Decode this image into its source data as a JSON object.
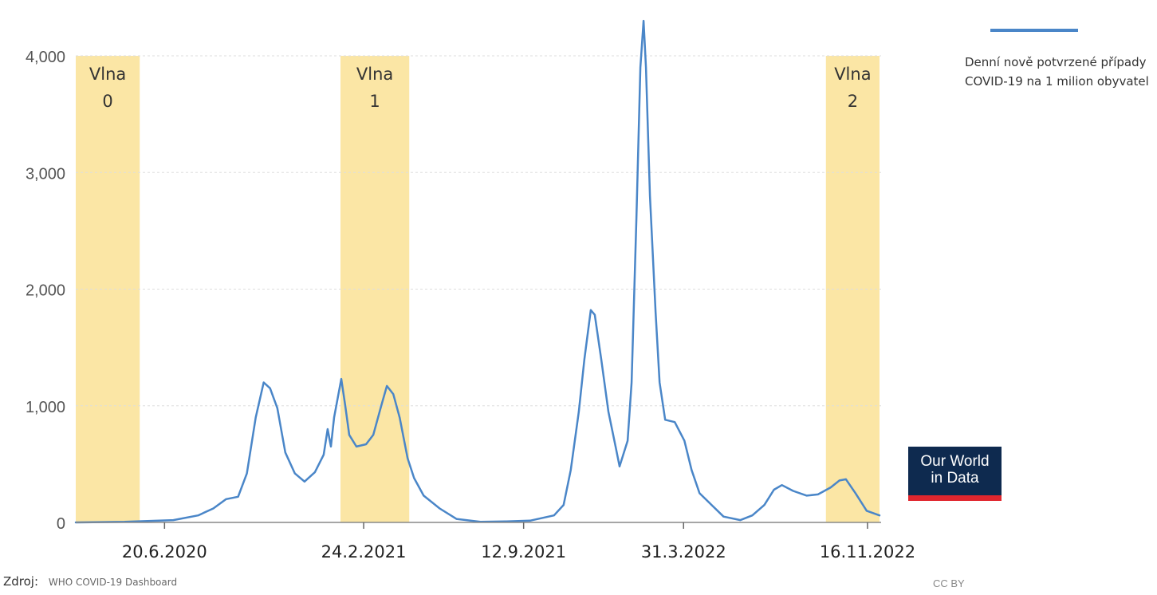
{
  "colors": {
    "line": "#4a86c8",
    "band": "#fbe6a5",
    "grid": "#dddddd",
    "axis_text": "#555555",
    "logo_bg": "#0e2a4f",
    "logo_accent": "#e0262e"
  },
  "source": {
    "label": "Zdroj:",
    "value": "WHO COVID-19 Dashboard"
  },
  "license": "CC BY",
  "logo": {
    "line1": "Our World",
    "line2": "in Data"
  },
  "chart_data": {
    "type": "line",
    "xlabel": "",
    "ylabel": "",
    "xlim": [
      "2020-03-01",
      "2022-12-03"
    ],
    "ylim": [
      0,
      4000
    ],
    "yticks": [
      0,
      1000,
      2000,
      3000,
      4000
    ],
    "ytick_labels": [
      "0",
      "1,000",
      "2,000",
      "3,000",
      "4,000"
    ],
    "xtick_labels": [
      {
        "date": "2020-06-20",
        "label": "20.6.2020"
      },
      {
        "date": "2021-02-24",
        "label": "24.2.2021"
      },
      {
        "date": "2021-09-12",
        "label": "12.9.2021"
      },
      {
        "date": "2022-03-31",
        "label": "31.3.2022"
      },
      {
        "date": "2022-11-16",
        "label": "16.11.2022"
      }
    ],
    "grid": true,
    "legend_position": "top-right",
    "bands": [
      {
        "start": "2020-03-01",
        "end": "2020-05-20",
        "label_line1": "Vlna",
        "label_line2": "0"
      },
      {
        "start": "2021-01-26",
        "end": "2021-04-22",
        "label_line1": "Vlna",
        "label_line2": "1"
      },
      {
        "start": "2022-09-25",
        "end": "2022-12-01",
        "label_line1": "Vlna",
        "label_line2": "2"
      }
    ],
    "series": [
      {
        "name": "Denní nově potvrzené případy COVID-19 na 1 milion obyvatel",
        "points": [
          [
            "2020-03-01",
            0
          ],
          [
            "2020-05-01",
            5
          ],
          [
            "2020-07-01",
            20
          ],
          [
            "2020-08-01",
            60
          ],
          [
            "2020-08-20",
            120
          ],
          [
            "2020-09-05",
            200
          ],
          [
            "2020-09-20",
            220
          ],
          [
            "2020-10-01",
            420
          ],
          [
            "2020-10-12",
            900
          ],
          [
            "2020-10-22",
            1200
          ],
          [
            "2020-10-30",
            1150
          ],
          [
            "2020-11-08",
            980
          ],
          [
            "2020-11-18",
            600
          ],
          [
            "2020-11-30",
            420
          ],
          [
            "2020-12-12",
            350
          ],
          [
            "2020-12-25",
            430
          ],
          [
            "2021-01-05",
            580
          ],
          [
            "2021-01-10",
            800
          ],
          [
            "2021-01-14",
            650
          ],
          [
            "2021-01-18",
            900
          ],
          [
            "2021-01-27",
            1230
          ],
          [
            "2021-02-01",
            1000
          ],
          [
            "2021-02-06",
            750
          ],
          [
            "2021-02-15",
            650
          ],
          [
            "2021-02-27",
            670
          ],
          [
            "2021-03-08",
            750
          ],
          [
            "2021-03-18",
            1000
          ],
          [
            "2021-03-25",
            1170
          ],
          [
            "2021-04-02",
            1100
          ],
          [
            "2021-04-10",
            900
          ],
          [
            "2021-04-20",
            550
          ],
          [
            "2021-04-28",
            380
          ],
          [
            "2021-05-10",
            230
          ],
          [
            "2021-05-30",
            120
          ],
          [
            "2021-06-20",
            30
          ],
          [
            "2021-07-20",
            5
          ],
          [
            "2021-08-20",
            8
          ],
          [
            "2021-09-20",
            15
          ],
          [
            "2021-10-20",
            60
          ],
          [
            "2021-11-01",
            150
          ],
          [
            "2021-11-10",
            450
          ],
          [
            "2021-11-20",
            950
          ],
          [
            "2021-11-27",
            1400
          ],
          [
            "2021-12-05",
            1820
          ],
          [
            "2021-12-10",
            1780
          ],
          [
            "2021-12-18",
            1400
          ],
          [
            "2021-12-27",
            950
          ],
          [
            "2022-01-05",
            650
          ],
          [
            "2022-01-10",
            480
          ],
          [
            "2022-01-20",
            700
          ],
          [
            "2022-01-25",
            1200
          ],
          [
            "2022-01-31",
            2600
          ],
          [
            "2022-02-05",
            3900
          ],
          [
            "2022-02-09",
            4300
          ],
          [
            "2022-02-12",
            3900
          ],
          [
            "2022-02-17",
            2800
          ],
          [
            "2022-02-24",
            1800
          ],
          [
            "2022-03-01",
            1200
          ],
          [
            "2022-03-08",
            880
          ],
          [
            "2022-03-20",
            860
          ],
          [
            "2022-04-01",
            700
          ],
          [
            "2022-04-10",
            450
          ],
          [
            "2022-04-20",
            250
          ],
          [
            "2022-05-05",
            150
          ],
          [
            "2022-05-20",
            50
          ],
          [
            "2022-06-10",
            20
          ],
          [
            "2022-06-25",
            60
          ],
          [
            "2022-07-10",
            150
          ],
          [
            "2022-07-22",
            280
          ],
          [
            "2022-08-01",
            320
          ],
          [
            "2022-08-15",
            270
          ],
          [
            "2022-09-01",
            230
          ],
          [
            "2022-09-15",
            240
          ],
          [
            "2022-10-01",
            300
          ],
          [
            "2022-10-12",
            360
          ],
          [
            "2022-10-20",
            370
          ],
          [
            "2022-11-01",
            250
          ],
          [
            "2022-11-15",
            100
          ],
          [
            "2022-12-01",
            60
          ]
        ]
      }
    ]
  }
}
